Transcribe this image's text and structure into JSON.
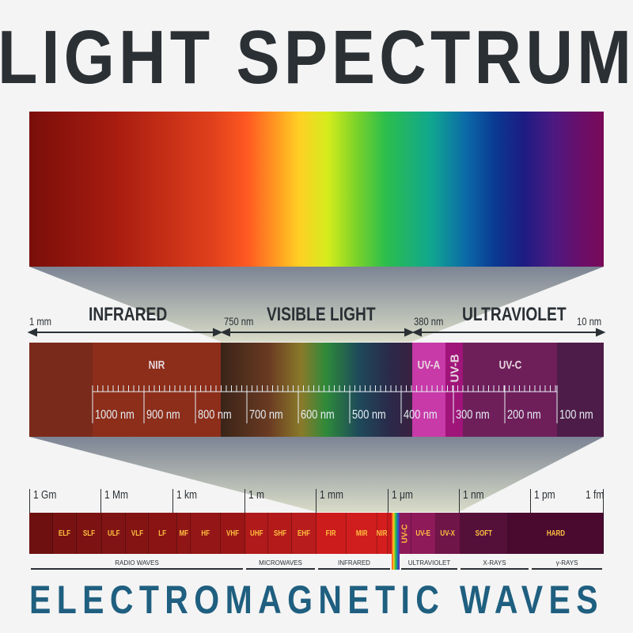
{
  "title": "LIGHT SPECTRUM",
  "subtitle": "ELECTROMAGNETIC WAVES",
  "regions": {
    "infrared": "INFRARED",
    "visible": "VISIBLE LIGHT",
    "ultraviolet": "ULTRAVIOLET"
  },
  "bounds": [
    "1 mm",
    "750 nm",
    "380 nm",
    "10 nm"
  ],
  "bands": {
    "nir": "NIR",
    "uva": "UV-A",
    "uvb": "UV-B",
    "uvc": "UV-C"
  },
  "ruler": [
    "1000 nm",
    "900 nm",
    "800 nm",
    "700 nm",
    "600 nm",
    "500 nm",
    "400 nm",
    "300 nm",
    "200 nm",
    "100 nm"
  ],
  "scale": [
    "1 Gm",
    "1 Mm",
    "1 km",
    "1 m",
    "1 mm",
    "1 μm",
    "1 nm",
    "1 pm",
    "1 fm"
  ],
  "cells": [
    "",
    "ELF",
    "SLF",
    "ULF",
    "VLF",
    "LF",
    "MF",
    "HF",
    "VHF",
    "UHF",
    "SHF",
    "EHF",
    "FIR",
    "MIR",
    "NIR",
    "",
    "UV-C",
    "UV-E",
    "UV-X",
    "SOFT",
    "HARD"
  ],
  "categories": [
    "RADIO WAVES",
    "MICROWAVES",
    "INFRARED",
    "ULTRAVIOLET",
    "X-RAYS",
    "γ-RAYS"
  ],
  "colors": {
    "title": "#2b3035",
    "subtitle": "#1f5f80"
  }
}
